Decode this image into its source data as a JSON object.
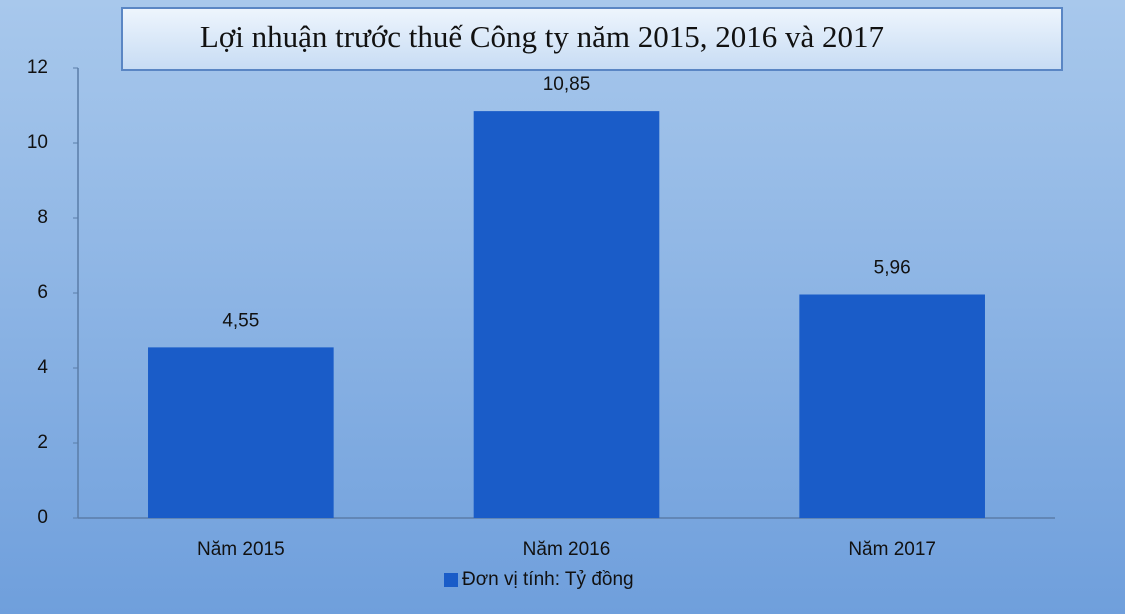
{
  "chart_data": {
    "type": "bar",
    "title": "Lợi nhuận trước thuế Công ty năm 2015, 2016 và 2017",
    "categories": [
      "Năm 2015",
      "Năm 2016",
      "Năm 2017"
    ],
    "series": [
      {
        "name": "Đơn vị tính: Tỷ đồng",
        "color": "#1a5cc8",
        "values": [
          4.55,
          10.85,
          5.96
        ],
        "value_labels": [
          "4,55",
          "10,85",
          "5,96"
        ]
      }
    ],
    "ylim": [
      0,
      12
    ],
    "yticks": [
      0,
      2,
      4,
      6,
      8,
      10,
      12
    ],
    "grid": false,
    "legend": "bottom"
  }
}
